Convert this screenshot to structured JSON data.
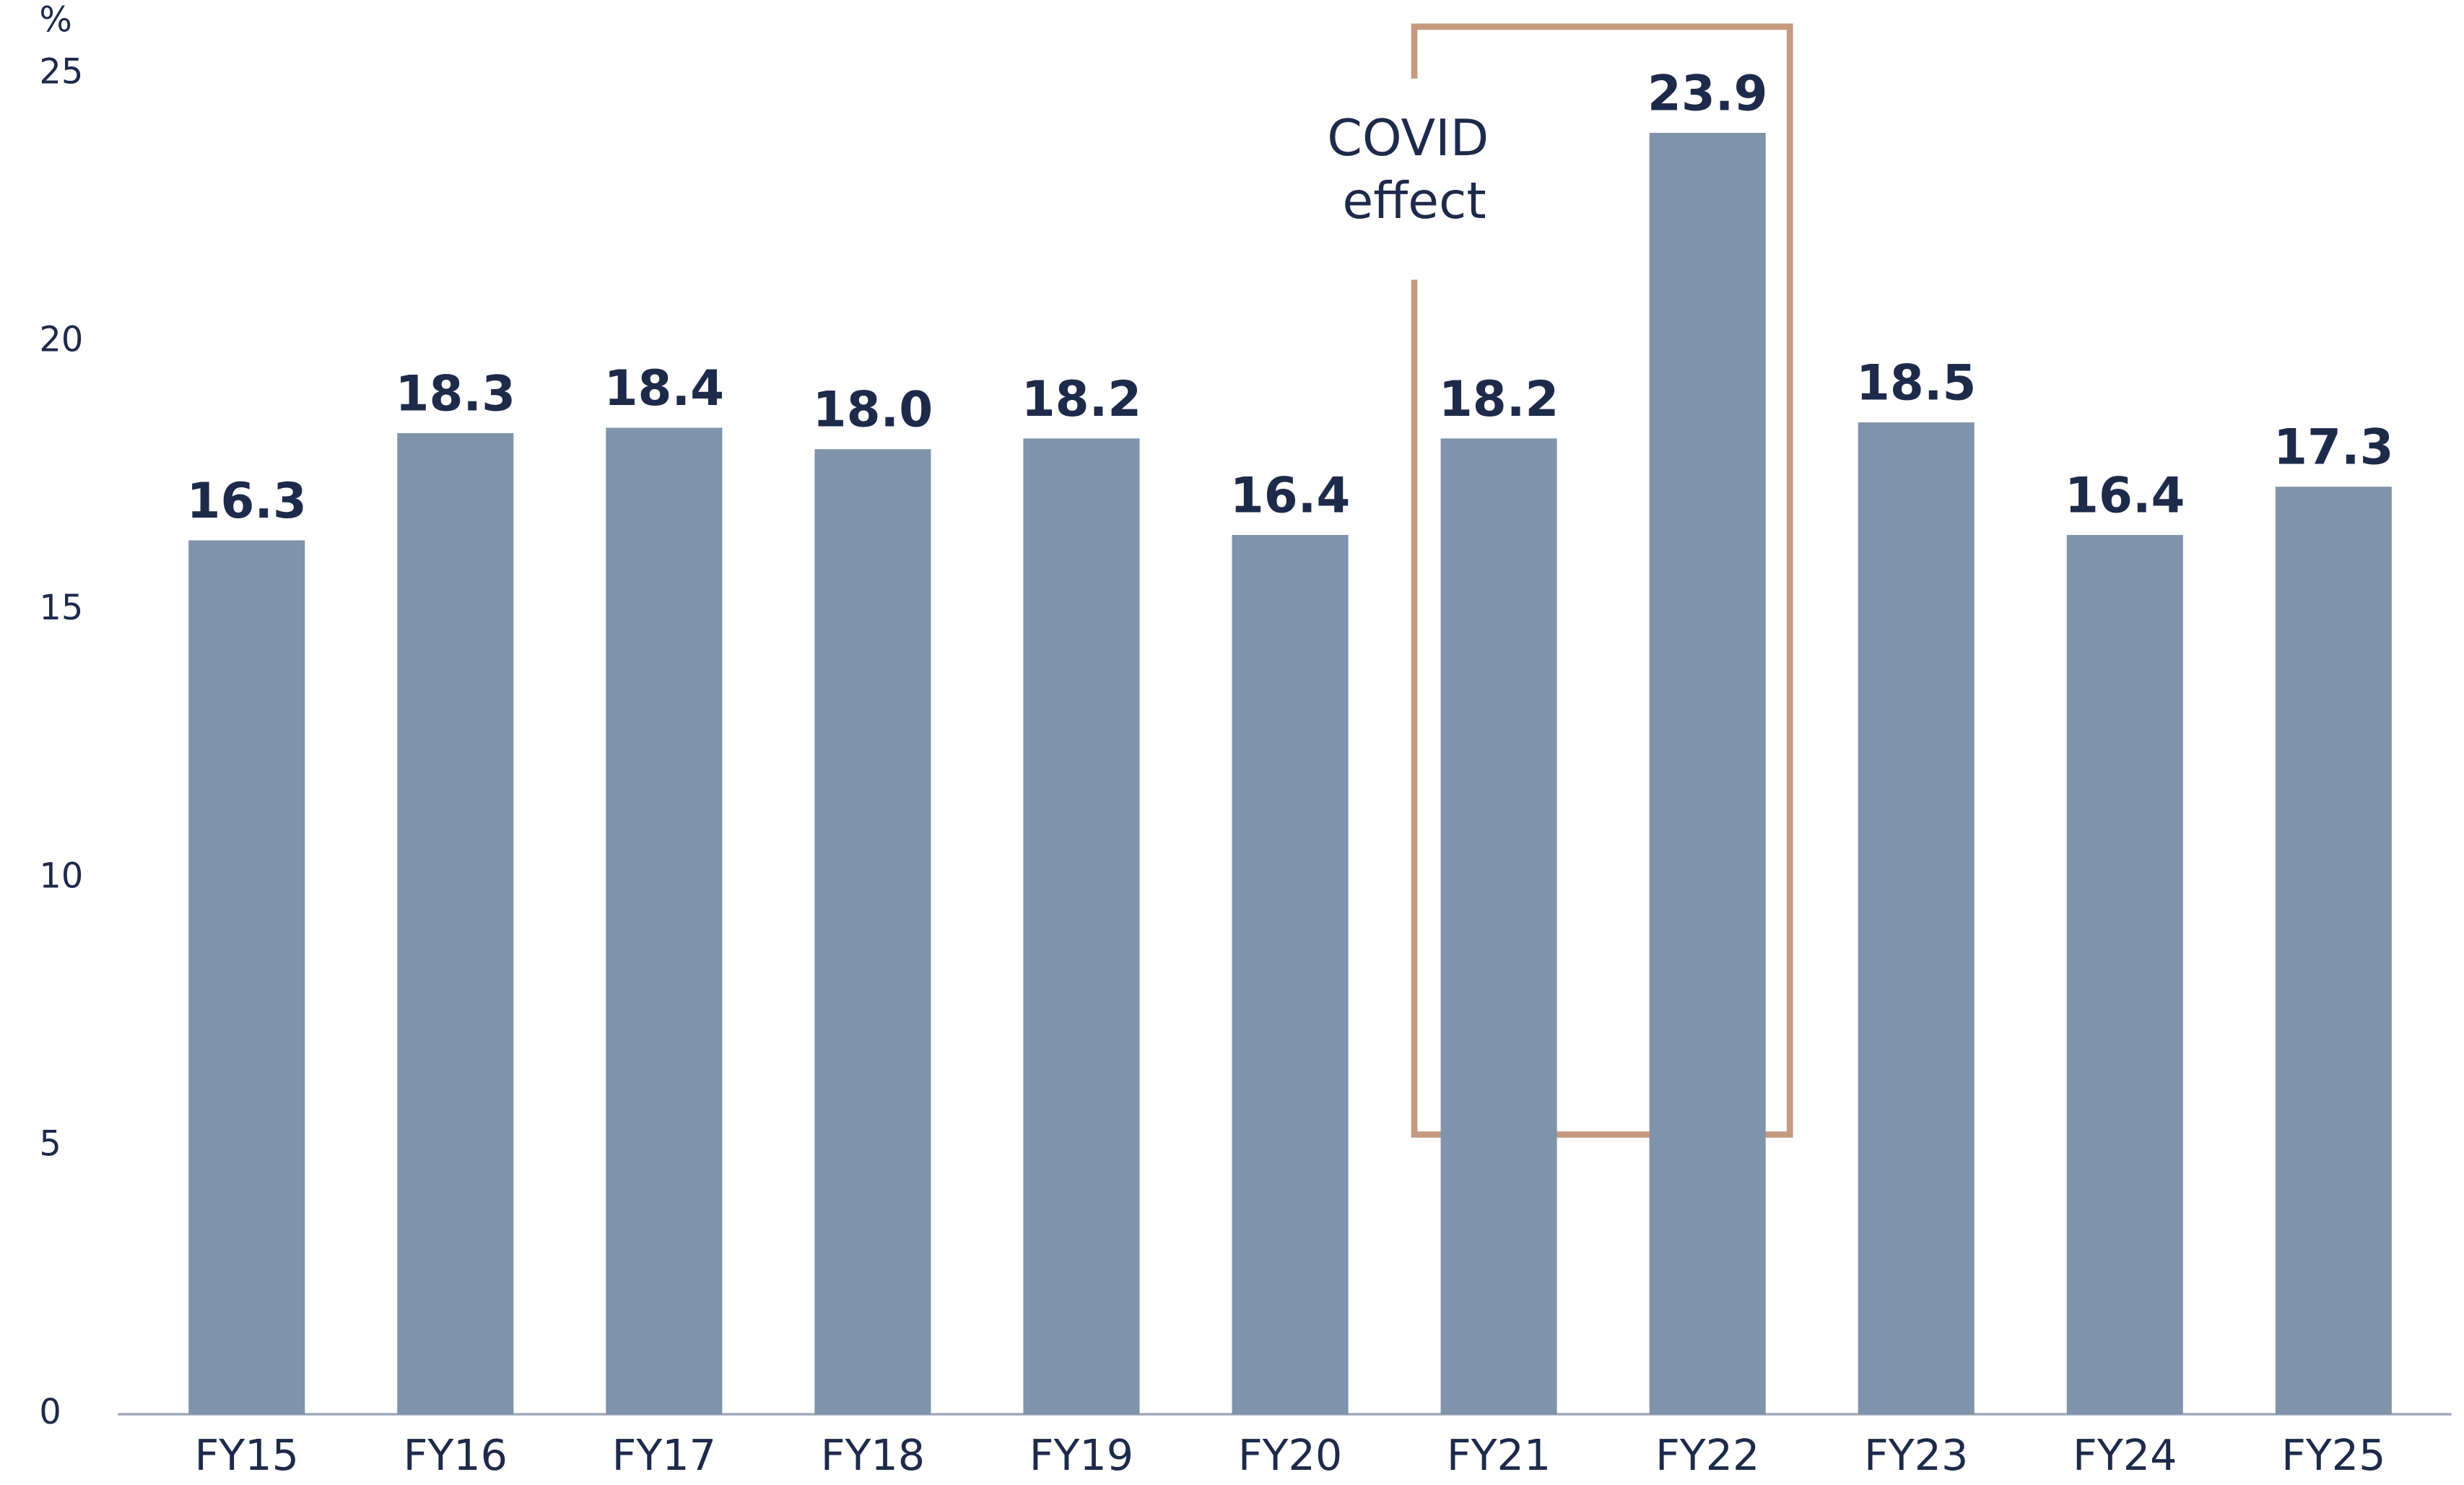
{
  "chart_data": {
    "type": "bar",
    "y_axis_label": "%",
    "categories": [
      "FY15",
      "FY16",
      "FY17",
      "FY18",
      "FY19",
      "FY20",
      "FY21",
      "FY22",
      "FY23",
      "FY24",
      "FY25"
    ],
    "values": [
      16.3,
      18.3,
      18.4,
      18.0,
      18.2,
      16.4,
      18.2,
      23.9,
      18.5,
      16.4,
      17.3
    ],
    "value_labels": [
      "16.3",
      "18.3",
      "18.4",
      "18.0",
      "18.2",
      "16.4",
      "18.2",
      "23.9",
      "18.5",
      "16.4",
      "17.3"
    ],
    "color": "#7f93ab",
    "ylim": [
      0,
      25
    ],
    "yticks": [
      0,
      5,
      10,
      15,
      20,
      25
    ],
    "grid": false,
    "annotation_lines": [
      "COVID",
      "effect"
    ]
  }
}
